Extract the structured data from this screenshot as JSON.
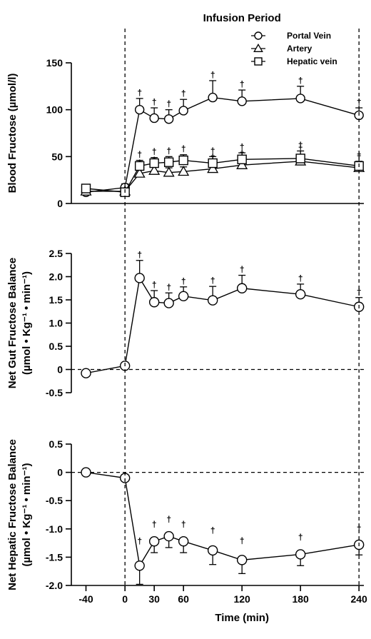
{
  "chart_data": {
    "type": "line",
    "title": "Infusion Period",
    "x_label": "Time (min)",
    "x_ticks": [
      "-40",
      "0",
      "30",
      "60",
      "120",
      "180",
      "240"
    ],
    "x_range": [
      -55,
      245
    ],
    "panels": [
      {
        "ylabel_line1": "Blood Fructose (µmol/l)",
        "ylabel_line2": "",
        "ylim": [
          0,
          150
        ],
        "yticks": [
          0,
          50,
          100,
          150
        ],
        "ytick_labels": [
          "0",
          "50",
          "100",
          "150"
        ],
        "legend": [
          {
            "label": "Portal Vein",
            "marker": "circle"
          },
          {
            "label": "Artery",
            "marker": "triangle"
          },
          {
            "label": "Hepatic vein",
            "marker": "square"
          }
        ],
        "series": [
          {
            "name": "Portal Vein",
            "marker": "circle",
            "x": [
              -40,
              0,
              15,
              30,
              45,
              60,
              90,
              120,
              180,
              240
            ],
            "y": [
              12,
              17,
              100,
              91,
              90,
              99,
              113,
              109,
              112,
              94
            ],
            "err": [
              3,
              4,
              12,
              11,
              10,
              12,
              18,
              12,
              13,
              8
            ],
            "sig": [
              false,
              false,
              true,
              true,
              true,
              true,
              true,
              true,
              true,
              true
            ]
          },
          {
            "name": "Artery",
            "marker": "triangle",
            "x": [
              -40,
              0,
              15,
              30,
              45,
              60,
              90,
              120,
              180,
              240
            ],
            "y": [
              13,
              13,
              32,
              35,
              33,
              34,
              37,
              41,
              45,
              38
            ],
            "err": [
              3,
              3,
              5,
              5,
              5,
              5,
              6,
              6,
              7,
              5
            ],
            "sig": [
              false,
              false,
              true,
              true,
              true,
              true,
              true,
              true,
              true,
              true
            ]
          },
          {
            "name": "Hepatic vein",
            "marker": "square",
            "x": [
              -40,
              0,
              15,
              30,
              45,
              60,
              90,
              120,
              180,
              240
            ],
            "y": [
              16,
              12,
              40,
              43,
              44,
              46,
              43,
              47,
              48,
              40
            ],
            "err": [
              3,
              3,
              6,
              6,
              6,
              6,
              7,
              7,
              8,
              5
            ],
            "sig": [
              false,
              false,
              true,
              true,
              true,
              true,
              true,
              true,
              true,
              true
            ]
          }
        ],
        "dashed_zero": false
      },
      {
        "ylabel_line1": "Net Gut Fructose Balance",
        "ylabel_line2": "(µmol • Kg⁻¹ • min⁻¹)",
        "ylim": [
          -0.5,
          2.5
        ],
        "yticks": [
          -0.5,
          0,
          0.5,
          1.0,
          1.5,
          2.0,
          2.5
        ],
        "ytick_labels": [
          "-0.5",
          "0",
          "0.5",
          "1.0",
          "1.5",
          "2.0",
          "2.5"
        ],
        "series": [
          {
            "name": "",
            "marker": "circle",
            "x": [
              -40,
              0,
              15,
              30,
              45,
              60,
              90,
              120,
              180,
              240
            ],
            "y": [
              -0.08,
              0.08,
              1.97,
              1.45,
              1.43,
              1.58,
              1.49,
              1.75,
              1.62,
              1.35
            ],
            "err": [
              0.03,
              0.05,
              0.38,
              0.25,
              0.22,
              0.2,
              0.3,
              0.28,
              0.22,
              0.2
            ],
            "sig": [
              false,
              false,
              true,
              true,
              true,
              true,
              true,
              true,
              true,
              true
            ]
          }
        ],
        "dashed_zero": true
      },
      {
        "ylabel_line1": "Net Hepatic Fructose Balance",
        "ylabel_line2": "(µmol • Kg⁻¹ • min⁻¹)",
        "ylim": [
          -2.0,
          0.5
        ],
        "yticks": [
          -2.0,
          -1.5,
          -1.0,
          -0.5,
          0,
          0.5
        ],
        "ytick_labels": [
          "-2.0",
          "-1.5",
          "-1.0",
          "-0.5",
          "0",
          "0.5"
        ],
        "series": [
          {
            "name": "",
            "marker": "circle",
            "x": [
              -40,
              0,
              15,
              30,
              45,
              60,
              90,
              120,
              180,
              240
            ],
            "y": [
              0.0,
              -0.1,
              -1.65,
              -1.22,
              -1.13,
              -1.22,
              -1.38,
              -1.55,
              -1.45,
              -1.28
            ],
            "err": [
              0.02,
              0.05,
              0.33,
              0.2,
              0.2,
              0.2,
              0.25,
              0.24,
              0.2,
              0.18
            ],
            "sig": [
              false,
              false,
              true,
              true,
              true,
              true,
              true,
              true,
              true,
              true
            ]
          }
        ],
        "dashed_zero": true
      }
    ]
  }
}
